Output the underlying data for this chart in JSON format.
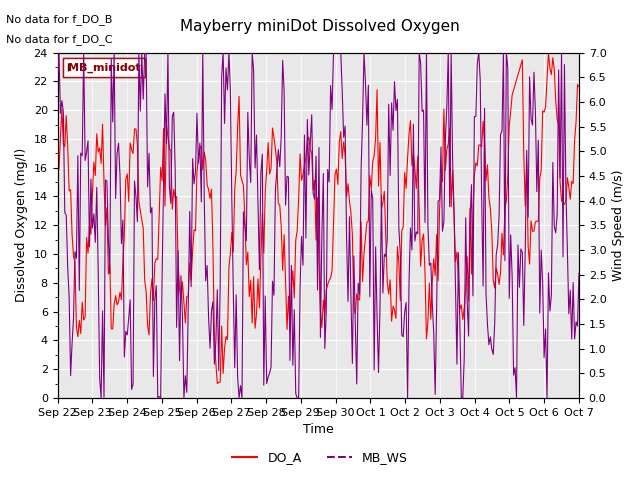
{
  "title": "Mayberry miniDot Dissolved Oxygen",
  "xlabel": "Time",
  "ylabel_left": "Dissolved Oxygen (mg/l)",
  "ylabel_right": "Wind Speed (m/s)",
  "annotation1": "No data for f_DO_B",
  "annotation2": "No data for f_DO_C",
  "legend_box_label": "MB_minidot",
  "legend_labels": [
    "DO_A",
    "MB_WS"
  ],
  "line_colors": [
    "red",
    "purple"
  ],
  "ylim_left": [
    0,
    24
  ],
  "ylim_right": [
    0.0,
    7.0
  ],
  "yticks_left": [
    0,
    2,
    4,
    6,
    8,
    10,
    12,
    14,
    16,
    18,
    20,
    22,
    24
  ],
  "yticks_right": [
    0.0,
    0.5,
    1.0,
    1.5,
    2.0,
    2.5,
    3.0,
    3.5,
    4.0,
    4.5,
    5.0,
    5.5,
    6.0,
    6.5,
    7.0
  ],
  "xtick_labels": [
    "Sep 22",
    "Sep 23",
    "Sep 24",
    "Sep 25",
    "Sep 26",
    "Sep 27",
    "Sep 28",
    "Sep 29",
    "Sep 30",
    "Oct 1",
    "Oct 2",
    "Oct 3",
    "Oct 4",
    "Oct 5",
    "Oct 6",
    "Oct 7"
  ],
  "n_points": 360,
  "background_color": "#f0f0f0",
  "plot_bg_color": "#e8e8e8"
}
